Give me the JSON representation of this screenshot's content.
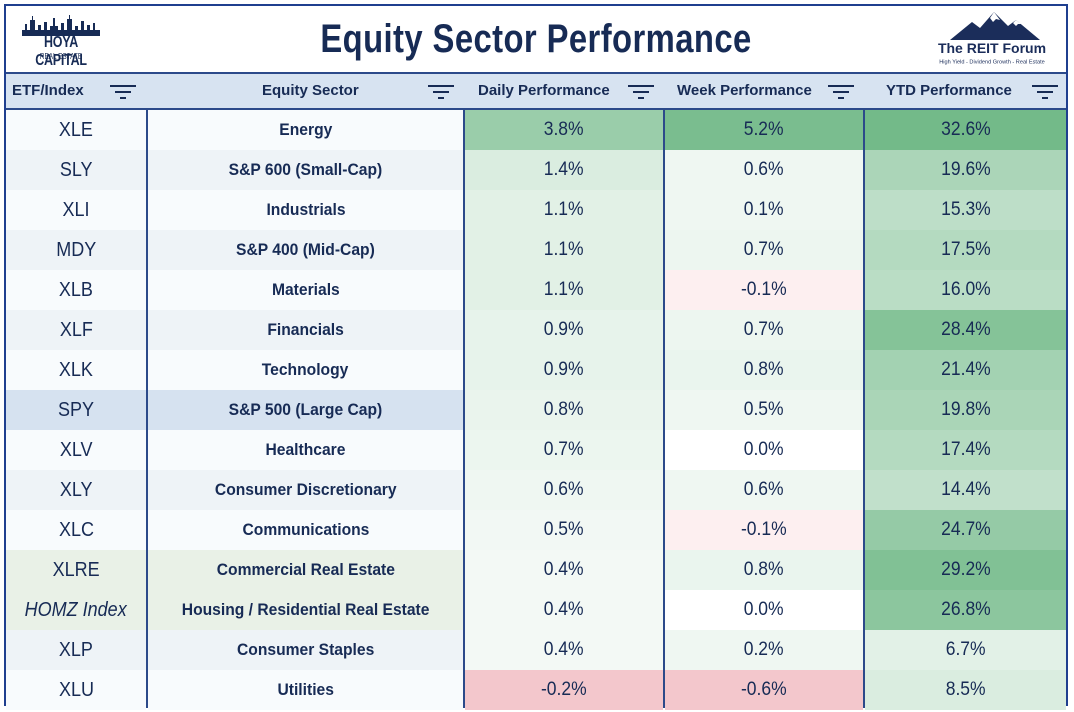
{
  "title": "Equity Sector Performance",
  "logos": {
    "hoya": {
      "name": "HOYA CAPITAL",
      "sub": "REAL ESTATE",
      "color": "#172b55"
    },
    "reit": {
      "name": "The REIT Forum",
      "tagline": "High Yield - Dividend Growth - Real Estate",
      "color": "#1b2d5a"
    }
  },
  "headers": {
    "etf": "ETF/Index",
    "sector": "Equity Sector",
    "daily": "Daily Performance",
    "week": "Week Performance",
    "ytd": "YTD Performance"
  },
  "chart_data": {
    "type": "table",
    "title": "Equity Sector Performance",
    "columns": [
      "ETF/Index",
      "Equity Sector",
      "Daily Performance",
      "Week Performance",
      "YTD Performance"
    ],
    "rows": [
      {
        "etf": "XLE",
        "sector": "Energy",
        "daily": "3.8%",
        "week": "5.2%",
        "ytd": "32.6%"
      },
      {
        "etf": "SLY",
        "sector": "S&P 600 (Small-Cap)",
        "daily": "1.4%",
        "week": "0.6%",
        "ytd": "19.6%"
      },
      {
        "etf": "XLI",
        "sector": "Industrials",
        "daily": "1.1%",
        "week": "0.1%",
        "ytd": "15.3%"
      },
      {
        "etf": "MDY",
        "sector": "S&P 400 (Mid-Cap)",
        "daily": "1.1%",
        "week": "0.7%",
        "ytd": "17.5%"
      },
      {
        "etf": "XLB",
        "sector": "Materials",
        "daily": "1.1%",
        "week": "-0.1%",
        "ytd": "16.0%"
      },
      {
        "etf": "XLF",
        "sector": "Financials",
        "daily": "0.9%",
        "week": "0.7%",
        "ytd": "28.4%"
      },
      {
        "etf": "XLK",
        "sector": "Technology",
        "daily": "0.9%",
        "week": "0.8%",
        "ytd": "21.4%"
      },
      {
        "etf": "SPY",
        "sector": "S&P 500 (Large Cap)",
        "daily": "0.8%",
        "week": "0.5%",
        "ytd": "19.8%"
      },
      {
        "etf": "XLV",
        "sector": "Healthcare",
        "daily": "0.7%",
        "week": "0.0%",
        "ytd": "17.4%"
      },
      {
        "etf": "XLY",
        "sector": "Consumer Discretionary",
        "daily": "0.6%",
        "week": "0.6%",
        "ytd": "14.4%"
      },
      {
        "etf": "XLC",
        "sector": "Communications",
        "daily": "0.5%",
        "week": "-0.1%",
        "ytd": "24.7%"
      },
      {
        "etf": "XLRE",
        "sector": "Commercial Real Estate",
        "daily": "0.4%",
        "week": "0.8%",
        "ytd": "29.2%"
      },
      {
        "etf": "HOMZ Index",
        "sector": "Housing / Residential Real Estate",
        "daily": "0.4%",
        "week": "0.0%",
        "ytd": "26.8%"
      },
      {
        "etf": "XLP",
        "sector": "Consumer Staples",
        "daily": "0.4%",
        "week": "0.2%",
        "ytd": "6.7%"
      },
      {
        "etf": "XLU",
        "sector": "Utilities",
        "daily": "-0.2%",
        "week": "-0.6%",
        "ytd": "8.5%"
      }
    ],
    "highlight_rows": {
      "SPY": "#d6e2f0",
      "XLRE": "#e9f1e7",
      "HOMZ Index": "#e9f1e7"
    },
    "italic_rows": [
      "HOMZ Index"
    ],
    "colors": {
      "header_bg": "#d7e3f1",
      "border": "#2c4a8a",
      "text": "#172b55",
      "positive": "#63b27c",
      "negative": "#f3c7cc",
      "neutral": "#ffffff",
      "row_even": "#eef3f7"
    },
    "grid": true
  }
}
